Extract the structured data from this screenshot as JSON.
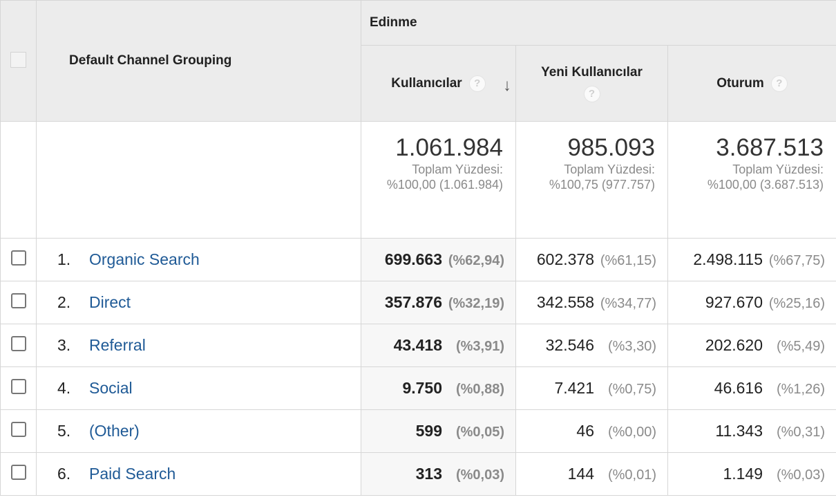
{
  "header": {
    "group_title": "Edinme",
    "dimension_title": "Default Channel Grouping",
    "metrics": [
      {
        "label": "Kullanıcılar",
        "help": "?",
        "sort": "↓"
      },
      {
        "label": "Yeni Kullanıcılar",
        "help": "?"
      },
      {
        "label": "Oturum",
        "help": "?"
      }
    ]
  },
  "summary": {
    "users": {
      "total": "1.061.984",
      "line1": "Toplam Yüzdesi:",
      "line2": "%100,00 (1.061.984)"
    },
    "new_users": {
      "total": "985.093",
      "line1": "Toplam Yüzdesi:",
      "line2": "%100,75 (977.757)"
    },
    "sessions": {
      "total": "3.687.513",
      "line1": "Toplam Yüzdesi:",
      "line2": "%100,00 (3.687.513)"
    }
  },
  "rows": [
    {
      "rank": "1.",
      "channel": "Organic Search",
      "users": "699.663",
      "users_pct": "(%62,94)",
      "new_users": "602.378",
      "new_users_pct": "(%61,15)",
      "sessions": "2.498.115",
      "sessions_pct": "(%67,75)"
    },
    {
      "rank": "2.",
      "channel": "Direct",
      "users": "357.876",
      "users_pct": "(%32,19)",
      "new_users": "342.558",
      "new_users_pct": "(%34,77)",
      "sessions": "927.670",
      "sessions_pct": "(%25,16)"
    },
    {
      "rank": "3.",
      "channel": "Referral",
      "users": "43.418",
      "users_pct": "(%3,91)",
      "new_users": "32.546",
      "new_users_pct": "(%3,30)",
      "sessions": "202.620",
      "sessions_pct": "(%5,49)"
    },
    {
      "rank": "4.",
      "channel": "Social",
      "users": "9.750",
      "users_pct": "(%0,88)",
      "new_users": "7.421",
      "new_users_pct": "(%0,75)",
      "sessions": "46.616",
      "sessions_pct": "(%1,26)"
    },
    {
      "rank": "5.",
      "channel": "(Other)",
      "users": "599",
      "users_pct": "(%0,05)",
      "new_users": "46",
      "new_users_pct": "(%0,00)",
      "sessions": "11.343",
      "sessions_pct": "(%0,31)"
    },
    {
      "rank": "6.",
      "channel": "Paid Search",
      "users": "313",
      "users_pct": "(%0,03)",
      "new_users": "144",
      "new_users_pct": "(%0,01)",
      "sessions": "1.149",
      "sessions_pct": "(%0,03)"
    }
  ],
  "colors": {
    "link": "#1f5a96",
    "header_bg": "#ececec",
    "muted": "#8a8a8a"
  }
}
